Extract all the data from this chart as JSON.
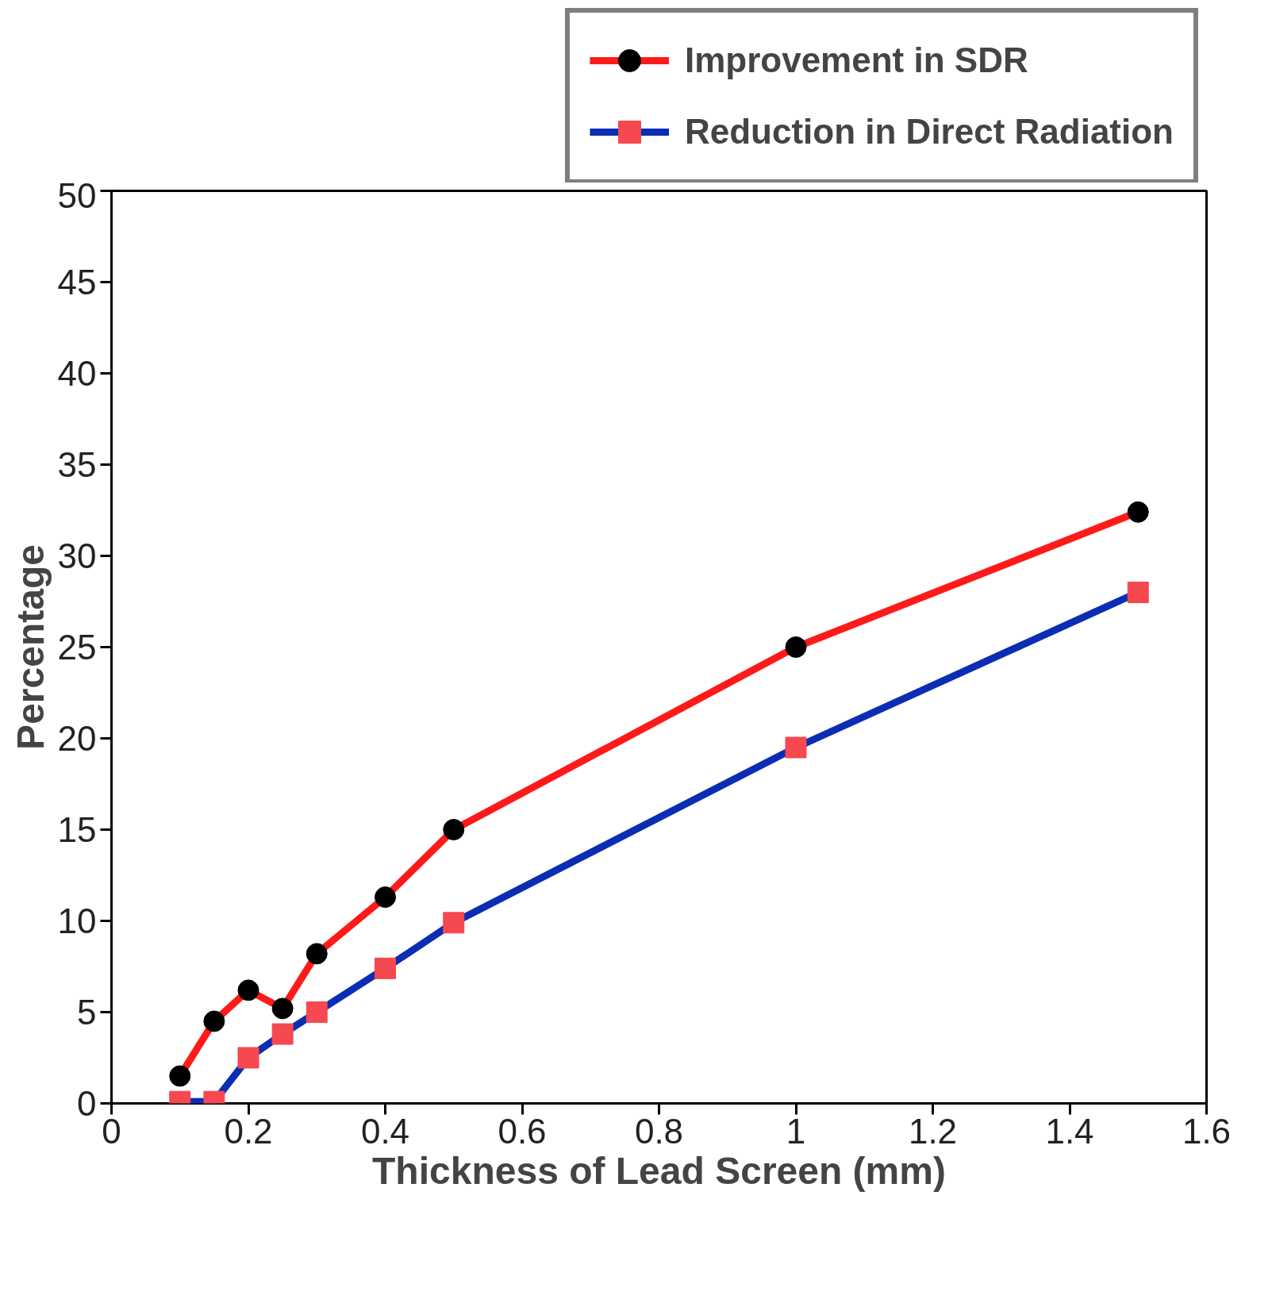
{
  "chart_data": {
    "type": "line",
    "xlabel": "Thickness of Lead Screen (mm)",
    "ylabel": "Percentage",
    "x": [
      0.1,
      0.15,
      0.2,
      0.25,
      0.3,
      0.4,
      0.5,
      1.0,
      1.5
    ],
    "series": [
      {
        "name": "Improvement in SDR",
        "color": "#ff1a1a",
        "marker": "circle",
        "colors": [
          "#000000",
          "#000000",
          "#000000",
          "#000000",
          "#000000",
          "#000000",
          "#000000",
          "#000000",
          "#000000"
        ],
        "values": [
          1.5,
          4.5,
          6.2,
          5.2,
          8.2,
          11.3,
          15.0,
          25.0,
          32.4
        ]
      },
      {
        "name": "Reduction in Direct Radiation",
        "color": "#0a2db4",
        "marker": "square",
        "colors": [
          "#f5484f",
          "#f5484f",
          "#f5484f",
          "#f5484f",
          "#f5484f",
          "#f5484f",
          "#f5484f",
          "#f5484f",
          "#f5484f"
        ],
        "values": [
          0.1,
          0.1,
          2.5,
          3.8,
          5.0,
          7.4,
          9.9,
          19.5,
          28.0
        ]
      }
    ],
    "xlim": [
      0,
      1.6
    ],
    "xticks": [
      0,
      0.2,
      0.4,
      0.6,
      0.8,
      1,
      1.2,
      1.4,
      1.6
    ],
    "ylim": [
      0,
      50
    ],
    "yticks": [
      0,
      5,
      10,
      15,
      20,
      25,
      30,
      35,
      40,
      45,
      50
    ],
    "grid": false,
    "legend": "top right",
    "line_style": "solid"
  }
}
